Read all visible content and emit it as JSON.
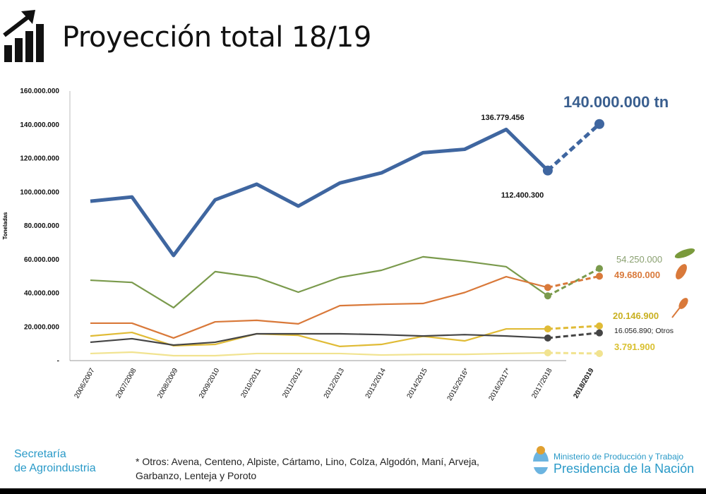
{
  "header": {
    "title": "Proyección total 18/19",
    "icon": "growth-bar-chart-icon"
  },
  "chart_data": {
    "type": "line",
    "title": "Proyección total 18/19",
    "ylabel": "Toneladas",
    "xlabel": "",
    "ylim": [
      0,
      160000000
    ],
    "y_ticks": [
      "-",
      "20.000.000",
      "40.000.000",
      "60.000.000",
      "80.000.000",
      "100.000.000",
      "120.000.000",
      "140.000.000",
      "160.000.000"
    ],
    "categories": [
      "2006/2007",
      "2007/2008",
      "2008/2009",
      "2009/2010",
      "2010/2011",
      "2011/2012",
      "2012/2013",
      "2013/2014",
      "2014/2015",
      "2015/2016*",
      "2016/2017*",
      "2017/2018",
      "2018/2019"
    ],
    "projection_from_index": 11,
    "grid": false,
    "series": [
      {
        "color": "#3f66a0",
        "width": 5,
        "values": [
          94200000,
          96700000,
          62000000,
          95000000,
          104300000,
          91300000,
          105000000,
          111000000,
          123000000,
          125000000,
          136779456,
          112400300,
          140000000
        ]
      },
      {
        "color": "#7a9a4c",
        "width": 2.2,
        "values": [
          47300000,
          46000000,
          31000000,
          52400000,
          49000000,
          40200000,
          49000000,
          53200000,
          61200000,
          58600000,
          55300000,
          38000000,
          54250000
        ]
      },
      {
        "color": "#d9793a",
        "width": 2.2,
        "values": [
          21800000,
          21800000,
          13000000,
          22600000,
          23500000,
          21400000,
          32200000,
          33000000,
          33500000,
          40000000,
          49400000,
          43000000,
          49680000
        ]
      },
      {
        "color": "#e0bb36",
        "width": 2.2,
        "values": [
          14200000,
          16300000,
          8400000,
          9200000,
          15500000,
          14600000,
          8000000,
          9200000,
          14000000,
          11300000,
          18400000,
          18400000,
          20146900
        ]
      },
      {
        "color": "#454545",
        "width": 2.2,
        "values": [
          10500000,
          12600000,
          8800000,
          10500000,
          15500000,
          15500000,
          15500000,
          15000000,
          14200000,
          15000000,
          14200000,
          13000000,
          16056890
        ]
      },
      {
        "color": "#f1e390",
        "width": 2.2,
        "values": [
          3800000,
          4600000,
          2500000,
          2500000,
          3800000,
          3800000,
          3800000,
          2900000,
          3300000,
          3300000,
          3800000,
          4200000,
          3791900
        ]
      }
    ],
    "annotations": {
      "peak": "136.779.456",
      "last_actual": "112.400.300",
      "projection_total": "140.000.000 tn",
      "soja": "54.250.000",
      "maiz": "49.680.000",
      "trigo": "20.146.900",
      "otros": "16.056.890; Otros",
      "last": "3.791.900"
    },
    "annotation_colors": {
      "soja": "#8aa070",
      "maiz": "#d9793a",
      "trigo": "#c9b020",
      "otros": "#222222",
      "last": "#d9c030"
    },
    "crop_icons": [
      "soybean-pod-icon",
      "corn-cob-icon",
      "wheat-icon"
    ]
  },
  "footer": {
    "left": [
      "Secretaría",
      "de Agroindustria"
    ],
    "footnote": "* Otros: Avena, Centeno, Alpiste, Cártamo, Lino, Colza, Algodón, Maní, Arveja, Garbanzo, Lenteja y Poroto",
    "right_line1": "Ministerio de Producción y Trabajo",
    "right_line2": "Presidencia de la Nación",
    "logo": "coat-of-arms-icon",
    "brand_color": "#2a9ac8"
  }
}
